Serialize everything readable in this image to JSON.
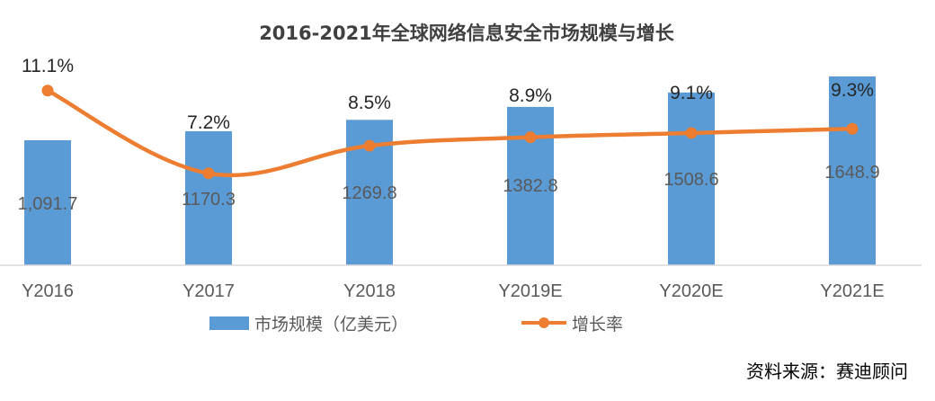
{
  "chart_data": {
    "type": "bar+line",
    "title": "2016-2021年全球网络信息安全市场规模与增长",
    "categories": [
      "Y2016",
      "Y2017",
      "Y2018",
      "Y2019E",
      "Y2020E",
      "Y2021E"
    ],
    "series": [
      {
        "name": "市场规模（亿美元）",
        "type": "bar",
        "color": "#5b9bd5",
        "values": [
          1091.7,
          1170.3,
          1269.8,
          1382.8,
          1508.6,
          1648.9
        ],
        "labels": [
          "1,091.7",
          "1170.3",
          "1269.8",
          "1382.8",
          "1508.6",
          "1648.9"
        ],
        "ylim": [
          0,
          1648.9
        ]
      },
      {
        "name": "增长率",
        "type": "line",
        "color": "#ed7d31",
        "values": [
          11.1,
          7.2,
          8.5,
          8.9,
          9.1,
          9.3
        ],
        "labels": [
          "11.1%",
          "7.2%",
          "8.5%",
          "8.9%",
          "9.1%",
          "9.3%"
        ]
      }
    ],
    "legend_position": "bottom",
    "grid": false
  },
  "source": "资料来源：赛迪顾问"
}
